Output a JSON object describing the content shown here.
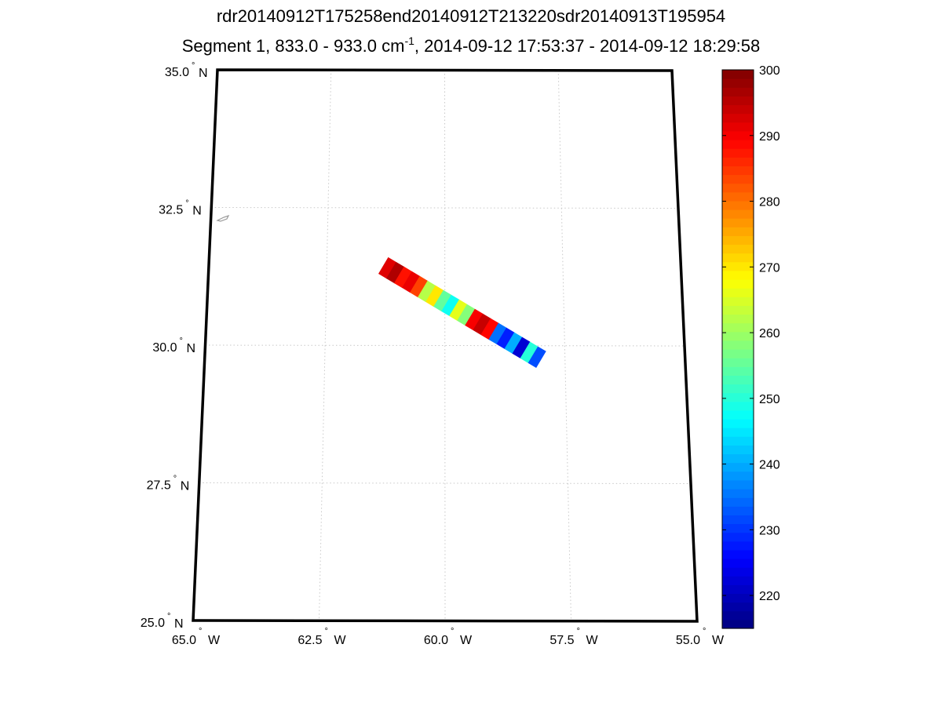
{
  "title": {
    "line1": "rdr20140912T175258end20140912T213220sdr20140913T195954",
    "line2_prefix": "Segment 1, 833.0 - 933.0 cm",
    "line2_sup": "-1",
    "line2_suffix": ", 2014-09-12 17:53:37 - 2014-09-12 18:29:58"
  },
  "map": {
    "lat_labels": [
      {
        "value": 35.0,
        "text": "35.0",
        "hemi": "N"
      },
      {
        "value": 32.5,
        "text": "32.5",
        "hemi": "N"
      },
      {
        "value": 30.0,
        "text": "30.0",
        "hemi": "N"
      },
      {
        "value": 27.5,
        "text": "27.5",
        "hemi": "N"
      },
      {
        "value": 25.0,
        "text": "25.0",
        "hemi": "N"
      }
    ],
    "lon_labels": [
      {
        "value": -65.0,
        "text": "65.0",
        "hemi": "W"
      },
      {
        "value": -62.5,
        "text": "62.5",
        "hemi": "W"
      },
      {
        "value": -60.0,
        "text": "60.0",
        "hemi": "W"
      },
      {
        "value": -57.5,
        "text": "57.5",
        "hemi": "W"
      },
      {
        "value": -55.0,
        "text": "55.0",
        "hemi": "W"
      }
    ],
    "degree_symbol": "°",
    "lat_range": [
      25.0,
      35.0
    ],
    "lon_range": [
      -65.0,
      -55.0
    ],
    "swath": {
      "start": {
        "lon": -61.3,
        "lat": 31.45
      },
      "end": {
        "lon": -58.0,
        "lat": 29.75
      },
      "segments": [
        {
          "t": 0.0,
          "value": 292
        },
        {
          "t": 0.05,
          "value": 296
        },
        {
          "t": 0.1,
          "value": 288
        },
        {
          "t": 0.15,
          "value": 291
        },
        {
          "t": 0.2,
          "value": 284
        },
        {
          "t": 0.25,
          "value": 262
        },
        {
          "t": 0.3,
          "value": 270
        },
        {
          "t": 0.35,
          "value": 255
        },
        {
          "t": 0.4,
          "value": 248
        },
        {
          "t": 0.45,
          "value": 266
        },
        {
          "t": 0.5,
          "value": 258
        },
        {
          "t": 0.55,
          "value": 290
        },
        {
          "t": 0.6,
          "value": 294
        },
        {
          "t": 0.65,
          "value": 289
        },
        {
          "t": 0.7,
          "value": 235
        },
        {
          "t": 0.75,
          "value": 228
        },
        {
          "t": 0.8,
          "value": 240
        },
        {
          "t": 0.85,
          "value": 222
        },
        {
          "t": 0.9,
          "value": 250
        },
        {
          "t": 0.95,
          "value": 232
        }
      ]
    }
  },
  "colorbar": {
    "min": 215,
    "max": 300,
    "ticks": [
      220,
      230,
      240,
      250,
      260,
      270,
      280,
      290,
      300
    ]
  }
}
